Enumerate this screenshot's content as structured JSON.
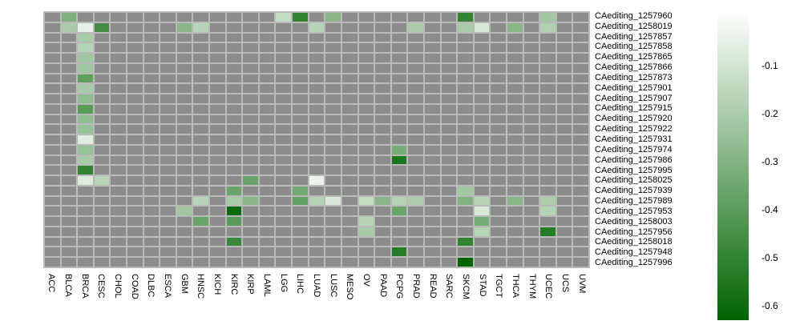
{
  "chart_data": {
    "type": "heatmap",
    "title": "",
    "xlabel": "",
    "ylabel": "",
    "rows": [
      "CAediting_1257960",
      "CAediting_1258019",
      "CAediting_1257857",
      "CAediting_1257858",
      "CAediting_1257865",
      "CAediting_1257866",
      "CAediting_1257873",
      "CAediting_1257901",
      "CAediting_1257907",
      "CAediting_1257915",
      "CAediting_1257920",
      "CAediting_1257922",
      "CAediting_1257931",
      "CAediting_1257974",
      "CAediting_1257986",
      "CAediting_1257995",
      "CAediting_1258025",
      "CAediting_1257939",
      "CAediting_1257989",
      "CAediting_1257953",
      "CAediting_1258003",
      "CAediting_1257956",
      "CAediting_1258018",
      "CAediting_1257948",
      "CAediting_1257996"
    ],
    "columns": [
      "ACC",
      "BLCA",
      "BRCA",
      "CESC",
      "CHOL",
      "COAD",
      "DLBC",
      "ESCA",
      "GBM",
      "HNSC",
      "KICH",
      "KIRC",
      "KIRP",
      "LAML",
      "LGG",
      "LIHC",
      "LUAD",
      "LUSC",
      "MESO",
      "OV",
      "PAAD",
      "PCPG",
      "PRAD",
      "READ",
      "SARC",
      "SKCM",
      "STAD",
      "TGCT",
      "THCA",
      "THYM",
      "UCEC",
      "UCS",
      "UVM"
    ],
    "na_color": "#8c8c8c",
    "grid_line_color": "#b9b9b9",
    "color_scale": {
      "type": "linear",
      "from_color": "#ffffff",
      "to_color": "#006400",
      "from_value": 0,
      "to_value": -0.65
    },
    "legend": {
      "position": "right",
      "tick_labels": [
        "-0.1",
        "-0.2",
        "-0.3",
        "-0.4",
        "-0.5",
        "-0.6"
      ],
      "tick_values": [
        -0.1,
        -0.2,
        -0.3,
        -0.4,
        -0.5,
        -0.6
      ]
    },
    "cells": [
      {
        "row": "CAediting_1257960",
        "col": "BLCA",
        "value": -0.33
      },
      {
        "row": "CAediting_1257960",
        "col": "LGG",
        "value": -0.15
      },
      {
        "row": "CAediting_1257960",
        "col": "LIHC",
        "value": -0.52
      },
      {
        "row": "CAediting_1257960",
        "col": "LUSC",
        "value": -0.3
      },
      {
        "row": "CAediting_1257960",
        "col": "SKCM",
        "value": -0.52
      },
      {
        "row": "CAediting_1257960",
        "col": "UCEC",
        "value": -0.24
      },
      {
        "row": "CAediting_1258019",
        "col": "BLCA",
        "value": -0.22
      },
      {
        "row": "CAediting_1258019",
        "col": "BRCA",
        "value": -0.06
      },
      {
        "row": "CAediting_1258019",
        "col": "CESC",
        "value": -0.48
      },
      {
        "row": "CAediting_1258019",
        "col": "GBM",
        "value": -0.3
      },
      {
        "row": "CAediting_1258019",
        "col": "HNSC",
        "value": -0.18
      },
      {
        "row": "CAediting_1258019",
        "col": "LUAD",
        "value": -0.18
      },
      {
        "row": "CAediting_1258019",
        "col": "PRAD",
        "value": -0.22
      },
      {
        "row": "CAediting_1258019",
        "col": "SKCM",
        "value": -0.22
      },
      {
        "row": "CAediting_1258019",
        "col": "STAD",
        "value": -0.1
      },
      {
        "row": "CAediting_1258019",
        "col": "THCA",
        "value": -0.3
      },
      {
        "row": "CAediting_1258019",
        "col": "UCEC",
        "value": -0.2
      },
      {
        "row": "CAediting_1257857",
        "col": "BRCA",
        "value": -0.22
      },
      {
        "row": "CAediting_1257858",
        "col": "BRCA",
        "value": -0.19
      },
      {
        "row": "CAediting_1257865",
        "col": "BRCA",
        "value": -0.24
      },
      {
        "row": "CAediting_1257866",
        "col": "BRCA",
        "value": -0.24
      },
      {
        "row": "CAediting_1257873",
        "col": "BRCA",
        "value": -0.4
      },
      {
        "row": "CAediting_1257901",
        "col": "BRCA",
        "value": -0.22
      },
      {
        "row": "CAediting_1257907",
        "col": "BRCA",
        "value": -0.28
      },
      {
        "row": "CAediting_1257915",
        "col": "BRCA",
        "value": -0.42
      },
      {
        "row": "CAediting_1257920",
        "col": "BRCA",
        "value": -0.28
      },
      {
        "row": "CAediting_1257922",
        "col": "BRCA",
        "value": -0.26
      },
      {
        "row": "CAediting_1257931",
        "col": "BRCA",
        "value": -0.08
      },
      {
        "row": "CAediting_1257974",
        "col": "BRCA",
        "value": -0.26
      },
      {
        "row": "CAediting_1257974",
        "col": "PCPG",
        "value": -0.35
      },
      {
        "row": "CAediting_1257986",
        "col": "BRCA",
        "value": -0.22
      },
      {
        "row": "CAediting_1257986",
        "col": "PCPG",
        "value": -0.58
      },
      {
        "row": "CAediting_1257995",
        "col": "BRCA",
        "value": -0.52
      },
      {
        "row": "CAediting_1258025",
        "col": "BRCA",
        "value": -0.09
      },
      {
        "row": "CAediting_1258025",
        "col": "CESC",
        "value": -0.18
      },
      {
        "row": "CAediting_1258025",
        "col": "KIRP",
        "value": -0.38
      },
      {
        "row": "CAediting_1258025",
        "col": "LUAD",
        "value": -0.05
      },
      {
        "row": "CAediting_1257939",
        "col": "KIRC",
        "value": -0.38
      },
      {
        "row": "CAediting_1257939",
        "col": "LIHC",
        "value": -0.36
      },
      {
        "row": "CAediting_1257939",
        "col": "SKCM",
        "value": -0.24
      },
      {
        "row": "CAediting_1257989",
        "col": "HNSC",
        "value": -0.18
      },
      {
        "row": "CAediting_1257989",
        "col": "KIRC",
        "value": -0.22
      },
      {
        "row": "CAediting_1257989",
        "col": "KIRP",
        "value": -0.3
      },
      {
        "row": "CAediting_1257989",
        "col": "LIHC",
        "value": -0.4
      },
      {
        "row": "CAediting_1257989",
        "col": "LUAD",
        "value": -0.19
      },
      {
        "row": "CAediting_1257989",
        "col": "LUSC",
        "value": -0.1
      },
      {
        "row": "CAediting_1257989",
        "col": "OV",
        "value": -0.15
      },
      {
        "row": "CAediting_1257989",
        "col": "PAAD",
        "value": -0.3
      },
      {
        "row": "CAediting_1257989",
        "col": "PCPG",
        "value": -0.19
      },
      {
        "row": "CAediting_1257989",
        "col": "PRAD",
        "value": -0.21
      },
      {
        "row": "CAediting_1257989",
        "col": "SKCM",
        "value": -0.32
      },
      {
        "row": "CAediting_1257989",
        "col": "STAD",
        "value": -0.18
      },
      {
        "row": "CAediting_1257989",
        "col": "THCA",
        "value": -0.3
      },
      {
        "row": "CAediting_1257989",
        "col": "UCEC",
        "value": -0.21
      },
      {
        "row": "CAediting_1257953",
        "col": "GBM",
        "value": -0.24
      },
      {
        "row": "CAediting_1257953",
        "col": "KIRC",
        "value": -0.62
      },
      {
        "row": "CAediting_1257953",
        "col": "PCPG",
        "value": -0.38
      },
      {
        "row": "CAediting_1257953",
        "col": "STAD",
        "value": -0.1
      },
      {
        "row": "CAediting_1257953",
        "col": "UCEC",
        "value": -0.19
      },
      {
        "row": "CAediting_1258003",
        "col": "HNSC",
        "value": -0.38
      },
      {
        "row": "CAediting_1258003",
        "col": "KIRC",
        "value": -0.42
      },
      {
        "row": "CAediting_1258003",
        "col": "OV",
        "value": -0.18
      },
      {
        "row": "CAediting_1258003",
        "col": "STAD",
        "value": -0.35
      },
      {
        "row": "CAediting_1257956",
        "col": "OV",
        "value": -0.22
      },
      {
        "row": "CAediting_1257956",
        "col": "STAD",
        "value": -0.18
      },
      {
        "row": "CAediting_1257956",
        "col": "UCEC",
        "value": -0.55
      },
      {
        "row": "CAediting_1258018",
        "col": "KIRC",
        "value": -0.5
      },
      {
        "row": "CAediting_1258018",
        "col": "SKCM",
        "value": -0.52
      },
      {
        "row": "CAediting_1257948",
        "col": "PCPG",
        "value": -0.55
      },
      {
        "row": "CAediting_1257996",
        "col": "SKCM",
        "value": -0.65
      }
    ]
  }
}
